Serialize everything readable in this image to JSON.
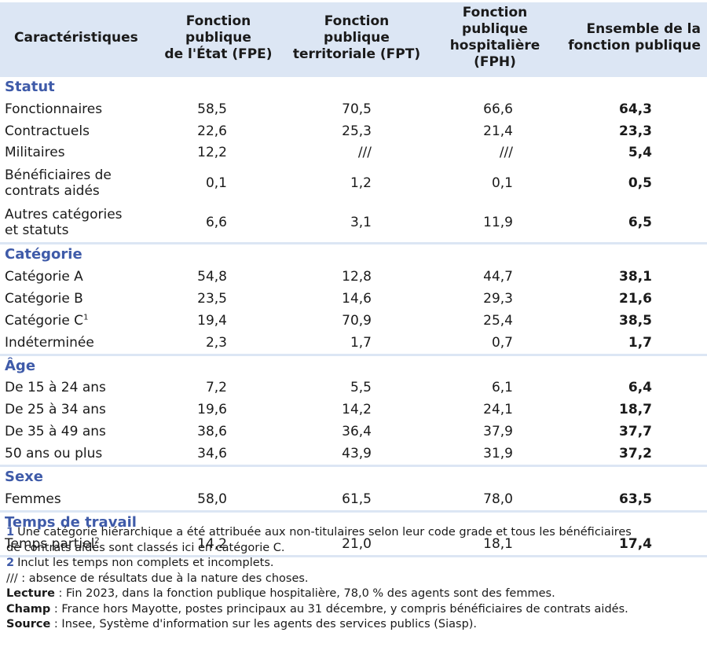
{
  "header": {
    "col0": "Caractéristiques",
    "col1": [
      "Fonction publique",
      "de l'État (FPE)"
    ],
    "col2": [
      "Fonction publique",
      "territoriale (FPT)"
    ],
    "col3": [
      "Fonction publique",
      "hospitalière (FPH)"
    ],
    "col4": [
      "Ensemble de la",
      "fonction publique"
    ]
  },
  "sections": [
    {
      "title": "Statut",
      "rows": [
        {
          "label": [
            "Fonctionnaires"
          ],
          "sup": "",
          "values": [
            "58,5",
            "70,5",
            "66,6",
            "64,3"
          ]
        },
        {
          "label": [
            "Contractuels"
          ],
          "sup": "",
          "values": [
            "22,6",
            "25,3",
            "21,4",
            "23,3"
          ]
        },
        {
          "label": [
            "Militaires"
          ],
          "sup": "",
          "values": [
            "12,2",
            "///",
            "///",
            "5,4"
          ]
        },
        {
          "label": [
            "Bénéficiaires de",
            "contrats aidés"
          ],
          "sup": "",
          "values": [
            "0,1",
            "1,2",
            "0,1",
            "0,5"
          ]
        },
        {
          "label": [
            "Autres catégories",
            "et statuts"
          ],
          "sup": "",
          "values": [
            "6,6",
            "3,1",
            "11,9",
            "6,5"
          ]
        }
      ]
    },
    {
      "title": "Catégorie",
      "rows": [
        {
          "label": [
            "Catégorie A"
          ],
          "sup": "",
          "values": [
            "54,8",
            "12,8",
            "44,7",
            "38,1"
          ]
        },
        {
          "label": [
            "Catégorie B"
          ],
          "sup": "",
          "values": [
            "23,5",
            "14,6",
            "29,3",
            "21,6"
          ]
        },
        {
          "label": [
            "Catégorie C"
          ],
          "sup": "1",
          "values": [
            "19,4",
            "70,9",
            "25,4",
            "38,5"
          ]
        },
        {
          "label": [
            "Indéterminée"
          ],
          "sup": "",
          "values": [
            "2,3",
            "1,7",
            "0,7",
            "1,7"
          ]
        }
      ]
    },
    {
      "title": "Âge",
      "rows": [
        {
          "label": [
            "De 15 à 24 ans"
          ],
          "sup": "",
          "values": [
            "7,2",
            "5,5",
            "6,1",
            "6,4"
          ]
        },
        {
          "label": [
            "De 25 à 34 ans"
          ],
          "sup": "",
          "values": [
            "19,6",
            "14,2",
            "24,1",
            "18,7"
          ]
        },
        {
          "label": [
            "De 35 à 49 ans"
          ],
          "sup": "",
          "values": [
            "38,6",
            "36,4",
            "37,9",
            "37,7"
          ]
        },
        {
          "label": [
            "50 ans ou plus"
          ],
          "sup": "",
          "values": [
            "34,6",
            "43,9",
            "31,9",
            "37,2"
          ]
        }
      ]
    },
    {
      "title": "Sexe",
      "rows": [
        {
          "label": [
            "Femmes"
          ],
          "sup": "",
          "values": [
            "58,0",
            "61,5",
            "78,0",
            "63,5"
          ]
        }
      ]
    },
    {
      "title": "Temps de travail",
      "rows": [
        {
          "label": [
            "Temps partiel"
          ],
          "sup": "2",
          "values": [
            "14,2",
            "21,0",
            "18,1",
            "17,4"
          ]
        }
      ]
    }
  ],
  "notes": {
    "n1_num": "1",
    "n1_text": "Une catégorie hiérarchique a été attribuée aux non-titulaires selon leur code grade et tous les bénéficiaires",
    "n1_text2": "de contrats aidés sont classés ici en catégorie C.",
    "n2_num": "2",
    "n2_text": "Inclut les temps non complets et incomplets.",
    "absence": "/// : absence de résultats due à la nature des choses.",
    "lecture_label": "Lecture",
    "lecture_text": " : Fin 2023, dans la fonction publique hospitalière, 78,0 % des agents sont des femmes.",
    "champ_label": "Champ",
    "champ_text": " : France hors Mayotte, postes principaux au 31 décembre, y compris bénéficiaires de contrats aidés.",
    "source_label": "Source",
    "source_text": " : Insee, Système d'information sur les agents des services publics (Siasp)."
  },
  "colors": {
    "header_bg": "#dce6f4",
    "section_title": "#3f5ba9"
  }
}
